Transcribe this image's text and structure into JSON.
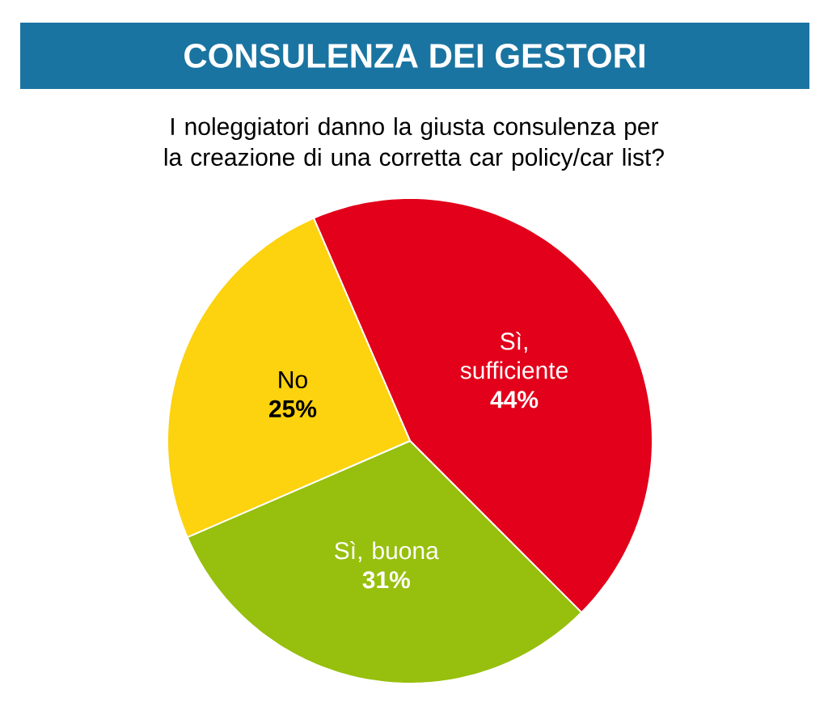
{
  "chart_data": {
    "type": "pie",
    "title": "CONSULENZA DEI GESTORI",
    "subtitle": "I noleggiatori danno la giusta consulenza per la creazione di una corretta car policy/car list?",
    "categories": [
      "Sì, sufficiente",
      "Sì, buona",
      "No"
    ],
    "values": [
      44,
      31,
      25
    ],
    "value_labels": [
      "44%",
      "31%",
      "25%"
    ],
    "colors": [
      "#e2001a",
      "#97bf0d",
      "#fdd20e"
    ]
  }
}
